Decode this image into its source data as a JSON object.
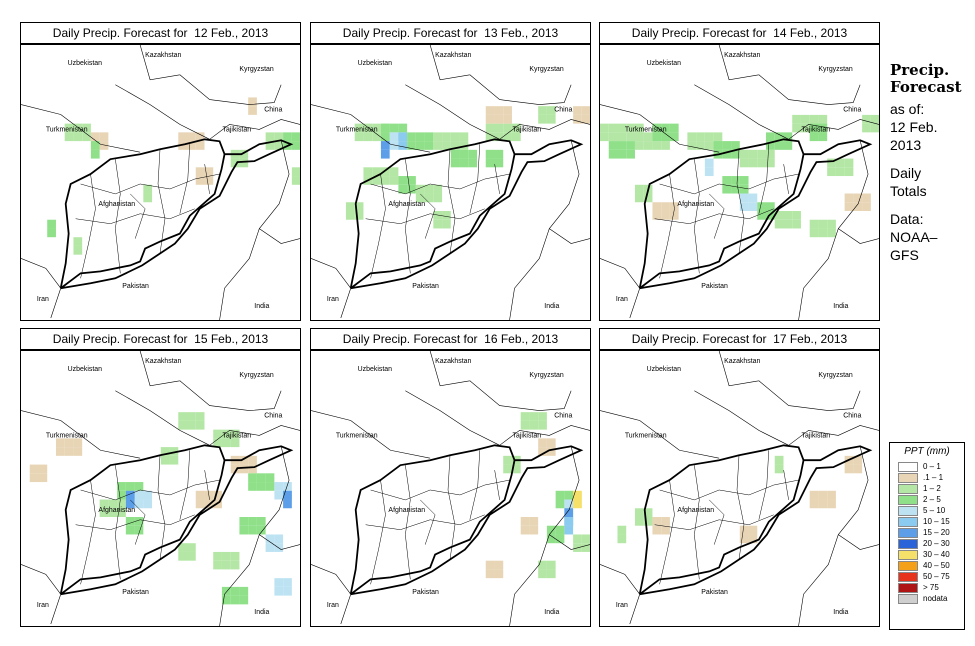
{
  "panels": [
    {
      "title": "Daily Precip. Forecast for  12 Feb., 2013",
      "cells": [
        [
          1,
          8,
          10,
          2
        ],
        [
          1,
          18,
          10,
          3
        ],
        [
          2,
          5,
          9,
          3
        ],
        [
          2,
          28,
          10,
          2
        ],
        [
          2,
          24,
          12,
          2
        ],
        [
          3,
          8,
          11,
          1
        ],
        [
          3,
          30,
          10,
          2
        ],
        [
          1,
          20,
          14,
          2
        ],
        [
          2,
          14,
          16,
          1
        ],
        [
          3,
          3,
          20,
          1
        ],
        [
          2,
          6,
          22,
          1
        ],
        [
          1,
          26,
          6,
          1
        ],
        [
          2,
          31,
          14,
          1
        ]
      ]
    },
    {
      "title": "Daily Precip. Forecast for  13 Feb., 2013",
      "cells": [
        [
          2,
          5,
          9,
          4
        ],
        [
          3,
          8,
          9,
          3
        ],
        [
          4,
          9,
          10,
          1
        ],
        [
          6,
          8,
          11,
          1
        ],
        [
          5,
          10,
          10,
          1
        ],
        [
          3,
          11,
          10,
          3
        ],
        [
          2,
          14,
          10,
          4
        ],
        [
          3,
          16,
          12,
          3
        ],
        [
          2,
          20,
          9,
          4
        ],
        [
          3,
          20,
          12,
          2
        ],
        [
          2,
          6,
          14,
          4
        ],
        [
          3,
          10,
          15,
          2
        ],
        [
          2,
          12,
          16,
          3
        ],
        [
          1,
          20,
          7,
          3
        ],
        [
          2,
          26,
          7,
          2
        ],
        [
          1,
          30,
          7,
          2
        ],
        [
          2,
          4,
          18,
          2
        ],
        [
          2,
          14,
          19,
          2
        ]
      ]
    },
    {
      "title": "Daily Precip. Forecast for  14 Feb., 2013",
      "cells": [
        [
          2,
          0,
          9,
          5
        ],
        [
          3,
          1,
          11,
          3
        ],
        [
          2,
          4,
          10,
          4
        ],
        [
          3,
          6,
          9,
          3
        ],
        [
          2,
          10,
          10,
          4
        ],
        [
          3,
          13,
          11,
          3
        ],
        [
          2,
          16,
          12,
          4
        ],
        [
          3,
          19,
          10,
          3
        ],
        [
          2,
          22,
          8,
          4
        ],
        [
          3,
          24,
          9,
          2
        ],
        [
          4,
          12,
          13,
          1
        ],
        [
          3,
          14,
          15,
          3
        ],
        [
          4,
          16,
          17,
          2
        ],
        [
          3,
          18,
          18,
          2
        ],
        [
          2,
          20,
          19,
          3
        ],
        [
          2,
          26,
          13,
          3
        ],
        [
          1,
          28,
          17,
          3
        ],
        [
          2,
          30,
          8,
          2
        ],
        [
          2,
          24,
          20,
          3
        ],
        [
          1,
          6,
          18,
          3
        ],
        [
          2,
          4,
          16,
          2
        ]
      ]
    },
    {
      "title": "Daily Precip. Forecast for  15 Feb., 2013",
      "cells": [
        [
          2,
          18,
          7,
          3
        ],
        [
          2,
          22,
          9,
          3
        ],
        [
          1,
          24,
          12,
          3
        ],
        [
          2,
          16,
          11,
          2
        ],
        [
          3,
          11,
          15,
          3
        ],
        [
          4,
          13,
          16,
          2
        ],
        [
          3,
          12,
          19,
          2
        ],
        [
          2,
          9,
          17,
          3
        ],
        [
          6,
          12,
          16,
          1
        ],
        [
          3,
          26,
          14,
          3
        ],
        [
          4,
          29,
          15,
          2
        ],
        [
          6,
          30,
          16,
          1
        ],
        [
          3,
          25,
          19,
          3
        ],
        [
          4,
          28,
          21,
          2
        ],
        [
          2,
          22,
          23,
          3
        ],
        [
          3,
          23,
          27,
          3
        ],
        [
          4,
          29,
          26,
          2
        ],
        [
          1,
          20,
          16,
          3
        ],
        [
          2,
          18,
          22,
          2
        ],
        [
          1,
          4,
          10,
          3
        ],
        [
          1,
          1,
          13,
          2
        ]
      ]
    },
    {
      "title": "Daily Precip. Forecast for  16 Feb., 2013",
      "cells": [
        [
          2,
          24,
          7,
          3
        ],
        [
          1,
          26,
          10,
          2
        ],
        [
          2,
          22,
          12,
          2
        ],
        [
          3,
          28,
          16,
          2
        ],
        [
          4,
          29,
          17,
          1
        ],
        [
          6,
          29,
          18,
          1
        ],
        [
          8,
          30,
          16,
          1
        ],
        [
          5,
          29,
          19,
          1
        ],
        [
          3,
          27,
          20,
          2
        ],
        [
          2,
          30,
          21,
          2
        ],
        [
          1,
          24,
          19,
          2
        ],
        [
          2,
          26,
          24,
          2
        ],
        [
          1,
          20,
          24,
          2
        ]
      ]
    },
    {
      "title": "Daily Precip. Forecast for  17 Feb., 2013",
      "cells": [
        [
          1,
          24,
          16,
          3
        ],
        [
          2,
          4,
          18,
          2
        ],
        [
          1,
          6,
          19,
          2
        ],
        [
          2,
          2,
          20,
          1
        ],
        [
          1,
          16,
          20,
          2
        ],
        [
          2,
          20,
          12,
          1
        ],
        [
          1,
          28,
          12,
          2
        ]
      ]
    }
  ],
  "countries": [
    "Uzbekistan",
    "Kazakhstan",
    "Kyrgyzstan",
    "Turkmenistan",
    "Tajikistan",
    "China",
    "Afghanistan",
    "Pakistan",
    "Iran",
    "India"
  ],
  "side": {
    "heading_1": "Precip.",
    "heading_2": "Forecast",
    "asof_1": "as of:",
    "asof_2": "12 Feb.",
    "asof_3": "2013",
    "daily_1": "Daily",
    "daily_2": "Totals",
    "data_1": "Data:",
    "data_2": "NOAA–",
    "data_3": "GFS"
  },
  "legend": {
    "title": "PPT (mm)",
    "classes": [
      {
        "label": "0 – 1",
        "color": "#ffffff"
      },
      {
        "label": ".1 – 1",
        "color": "#e8d5b6"
      },
      {
        "label": "1 – 2",
        "color": "#b4e7a5"
      },
      {
        "label": "2 – 5",
        "color": "#8fe089"
      },
      {
        "label": "5 – 10",
        "color": "#bde3f3"
      },
      {
        "label": "10 – 15",
        "color": "#8ccbf0"
      },
      {
        "label": "15 – 20",
        "color": "#5c9ee8"
      },
      {
        "label": "20 – 30",
        "color": "#2a64d8"
      },
      {
        "label": "30 – 40",
        "color": "#f5e06a"
      },
      {
        "label": "40 – 50",
        "color": "#f4a019"
      },
      {
        "label": "50 – 75",
        "color": "#e8331c"
      },
      {
        "label": "> 75",
        "color": "#b01515"
      },
      {
        "label": "nodata",
        "color": "#cfcfcf"
      }
    ]
  }
}
